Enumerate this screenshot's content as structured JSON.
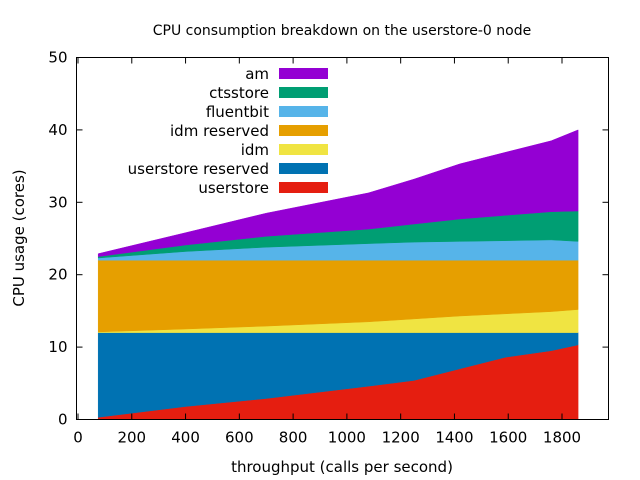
{
  "chart_data": {
    "type": "area",
    "stacked": true,
    "title": "CPU consumption breakdown on the userstore-0 node",
    "xlabel": "throughput (calls per second)",
    "ylabel": "CPU usage (cores)",
    "xlim": [
      0,
      1950
    ],
    "ylim": [
      0,
      50
    ],
    "xticks": [
      0,
      200,
      400,
      600,
      800,
      1000,
      1200,
      1400,
      1600,
      1800
    ],
    "yticks": [
      0,
      10,
      20,
      30,
      40,
      50
    ],
    "grid": false,
    "legend_position": "top-left",
    "x": [
      75,
      400,
      700,
      1080,
      1250,
      1420,
      1590,
      1760,
      1860
    ],
    "series": [
      {
        "name": "userstore",
        "color": "#e51e10",
        "values": [
          0.3,
          1.8,
          2.9,
          4.6,
          5.4,
          7.0,
          8.6,
          9.5,
          10.3
        ]
      },
      {
        "name": "userstore reserved",
        "color": "#0072b2",
        "values": [
          11.7,
          10.2,
          9.1,
          7.4,
          6.6,
          5.0,
          3.4,
          2.5,
          1.7
        ]
      },
      {
        "name": "idm",
        "color": "#f0e442",
        "values": [
          0.1,
          0.5,
          0.9,
          1.5,
          1.9,
          2.3,
          2.6,
          2.9,
          3.2
        ]
      },
      {
        "name": "idm reserved",
        "color": "#e69f00",
        "values": [
          9.9,
          9.5,
          9.1,
          8.5,
          8.1,
          7.7,
          7.4,
          7.1,
          6.8
        ]
      },
      {
        "name": "fluentbit",
        "color": "#56b4e9",
        "values": [
          0.3,
          1.2,
          1.8,
          2.3,
          2.5,
          2.6,
          2.7,
          2.8,
          2.6
        ]
      },
      {
        "name": "ctsstore",
        "color": "#009e73",
        "values": [
          0.2,
          0.9,
          1.5,
          2.0,
          2.5,
          3.1,
          3.5,
          3.9,
          4.2
        ]
      },
      {
        "name": "am",
        "color": "#9400d3",
        "values": [
          0.4,
          1.7,
          3.2,
          5.0,
          6.2,
          7.6,
          8.7,
          9.8,
          11.2
        ]
      }
    ],
    "legend_order": [
      "am",
      "ctsstore",
      "fluentbit",
      "idm reserved",
      "idm",
      "userstore reserved",
      "userstore"
    ]
  }
}
